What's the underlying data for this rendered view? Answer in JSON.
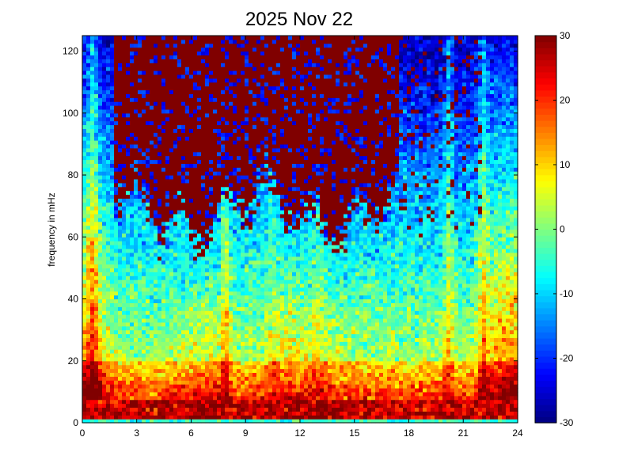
{
  "chart_data": {
    "type": "heatmap",
    "title": "2025 Nov 22",
    "xlabel": "",
    "ylabel": "frequency in mHz",
    "x_ticks": [
      0,
      3,
      6,
      9,
      12,
      15,
      18,
      21,
      24
    ],
    "y_ticks": [
      0,
      20,
      40,
      60,
      80,
      100,
      120
    ],
    "xlim": [
      0,
      24
    ],
    "ylim": [
      0,
      125
    ],
    "colorbar": {
      "colormap": "jet",
      "range": [
        -30,
        30
      ],
      "ticks": [
        -30,
        -20,
        -10,
        0,
        10,
        20,
        30
      ]
    },
    "grid": false,
    "cells": {
      "x_bins": 110,
      "y_bins": 100
    },
    "features": {
      "low_freq_band_mhz": [
        0,
        8
      ],
      "saturated_region_hours": [
        1.8,
        17.5
      ],
      "saturated_floor_mhz_range": [
        55,
        80
      ],
      "vertical_streak_hours": [
        0.6,
        7.9,
        20.2,
        22.1
      ]
    }
  }
}
